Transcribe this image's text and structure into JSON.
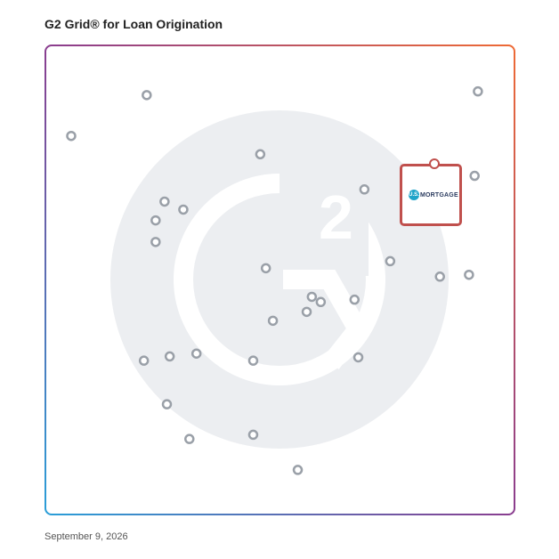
{
  "title": "G2 Grid® for Loan Origination",
  "date": "September 9, 2026",
  "logo": {
    "badge": "U.S.",
    "text": "MORTGAGE"
  },
  "colors": {
    "grid_gradient": [
      "#3b6fd8",
      "#a0406a",
      "#e8623a"
    ],
    "watermark": "#eceef1",
    "point_stroke": "#9aa0a8",
    "highlight": "#c0504d"
  },
  "chart_data": {
    "type": "scatter",
    "title": "G2 Grid® for Loan Origination",
    "xlabel": "",
    "ylabel": "",
    "xlim": [
      0,
      100
    ],
    "ylim": [
      0,
      100
    ],
    "grid": "quadrants",
    "points": [
      {
        "x": 5.5,
        "y": 80.7
      },
      {
        "x": 21.6,
        "y": 89.4
      },
      {
        "x": 45.8,
        "y": 76.8
      },
      {
        "x": 25.4,
        "y": 66.7
      },
      {
        "x": 29.4,
        "y": 65.0
      },
      {
        "x": 23.5,
        "y": 62.7
      },
      {
        "x": 23.5,
        "y": 58.1
      },
      {
        "x": 47.0,
        "y": 52.5
      },
      {
        "x": 68.0,
        "y": 69.3
      },
      {
        "x": 73.5,
        "y": 54.0
      },
      {
        "x": 92.2,
        "y": 90.2
      },
      {
        "x": 91.5,
        "y": 72.2
      },
      {
        "x": 84.1,
        "y": 50.7
      },
      {
        "x": 90.3,
        "y": 51.1
      },
      {
        "x": 56.8,
        "y": 46.4
      },
      {
        "x": 58.7,
        "y": 45.3
      },
      {
        "x": 55.7,
        "y": 43.2
      },
      {
        "x": 65.9,
        "y": 45.8
      },
      {
        "x": 48.5,
        "y": 41.3
      },
      {
        "x": 21.0,
        "y": 32.8
      },
      {
        "x": 26.5,
        "y": 33.7
      },
      {
        "x": 32.2,
        "y": 34.3
      },
      {
        "x": 44.3,
        "y": 32.8
      },
      {
        "x": 66.7,
        "y": 33.5
      },
      {
        "x": 25.9,
        "y": 23.5
      },
      {
        "x": 30.7,
        "y": 16.1
      },
      {
        "x": 44.3,
        "y": 17.0
      },
      {
        "x": 53.8,
        "y": 9.5
      }
    ],
    "highlight": {
      "x": 82.0,
      "y": 73.5,
      "label": "U.S. MORTGAGE"
    }
  }
}
